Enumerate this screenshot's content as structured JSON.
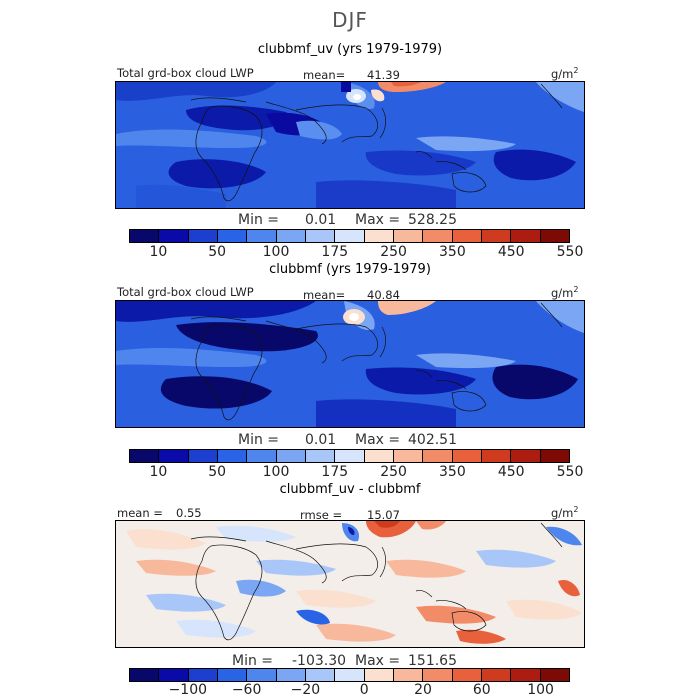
{
  "title": "DJF",
  "chart_data": [
    {
      "type": "heatmap",
      "title": "clubbmf_uv (yrs 1979-1979)",
      "left_label": "Total grd-box cloud LWP",
      "stat_label": "mean=",
      "stat_value": "41.39",
      "units_base": "g/m",
      "units_exp": "2",
      "min_label": "Min =",
      "min_value": "0.01",
      "max_label": "Max =",
      "max_value": "528.25",
      "colorbar_ticks": [
        "10",
        "50",
        "100",
        "175",
        "250",
        "350",
        "450",
        "550"
      ],
      "colors": [
        "#08086b",
        "#0a0aa8",
        "#1c3fd0",
        "#2a64e6",
        "#4f86ee",
        "#7aa6f3",
        "#a8c6f8",
        "#d6e5fb",
        "#fbe0d0",
        "#f7b89c",
        "#f28c68",
        "#e8603c",
        "#cf3b1f",
        "#ad1c10",
        "#7e0a06"
      ]
    },
    {
      "type": "heatmap",
      "title": "clubbmf (yrs 1979-1979)",
      "left_label": "Total grd-box cloud LWP",
      "stat_label": "mean=",
      "stat_value": "40.84",
      "units_base": "g/m",
      "units_exp": "2",
      "min_label": "Min =",
      "min_value": "0.01",
      "max_label": "Max =",
      "max_value": "402.51",
      "colorbar_ticks": [
        "10",
        "50",
        "100",
        "175",
        "250",
        "350",
        "450",
        "550"
      ],
      "colors": [
        "#08086b",
        "#0a0aa8",
        "#1c3fd0",
        "#2a64e6",
        "#4f86ee",
        "#7aa6f3",
        "#a8c6f8",
        "#d6e5fb",
        "#fbe0d0",
        "#f7b89c",
        "#f28c68",
        "#e8603c",
        "#cf3b1f",
        "#ad1c10",
        "#7e0a06"
      ]
    },
    {
      "type": "heatmap",
      "title": "clubbmf_uv - clubbmf",
      "left_label": "mean =",
      "left_value": "0.55",
      "stat_label": "rmse =",
      "stat_value": "15.07",
      "units_base": "g/m",
      "units_exp": "2",
      "min_label": "Min =",
      "min_value": "-103.30",
      "max_label": "Max =",
      "max_value": "151.65",
      "colorbar_ticks": [
        "−100",
        "−60",
        "−20",
        "0",
        "20",
        "60",
        "100"
      ],
      "colors": [
        "#08086b",
        "#0a0aa8",
        "#1c3fd0",
        "#2a64e6",
        "#4f86ee",
        "#7aa6f3",
        "#a8c6f8",
        "#d6e5fb",
        "#fbe0d0",
        "#f7b89c",
        "#f28c68",
        "#e8603c",
        "#cf3b1f",
        "#ad1c10",
        "#7e0a06"
      ]
    }
  ]
}
